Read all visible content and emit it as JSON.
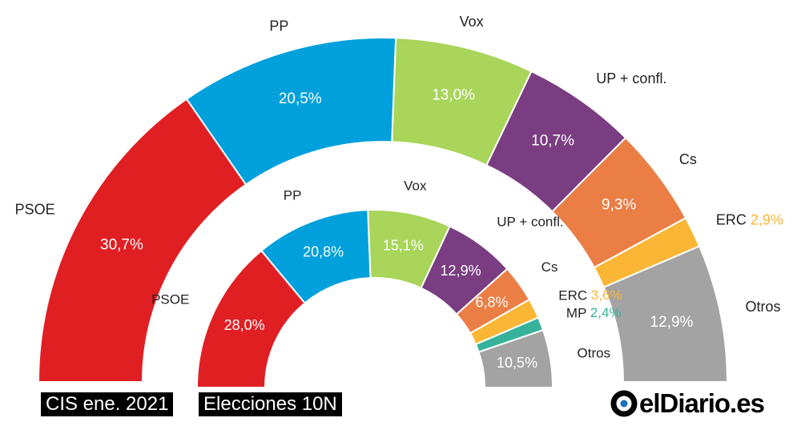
{
  "chart_data": [
    {
      "type": "pie",
      "variant": "semicircle-donut",
      "caption": "CIS ene. 2021",
      "categories": [
        "PSOE",
        "PP",
        "Vox",
        "UP + confl.",
        "Cs",
        "ERC",
        "Otros"
      ],
      "values": [
        30.7,
        20.5,
        13.0,
        10.7,
        9.3,
        2.9,
        12.9
      ],
      "value_labels": [
        "30,7%",
        "20,5%",
        "13,0%",
        "10,7%",
        "9,3%",
        "2,9%",
        "12,9%"
      ],
      "colors": [
        "#e01f23",
        "#00a0dc",
        "#a8d55a",
        "#7a3d82",
        "#ea7e45",
        "#fbb636",
        "#a3a3a3"
      ]
    },
    {
      "type": "pie",
      "variant": "semicircle-donut",
      "caption": "Elecciones 10N",
      "categories": [
        "PSOE",
        "PP",
        "Vox",
        "UP + confl.",
        "Cs",
        "ERC",
        "MP",
        "Otros"
      ],
      "values": [
        28.0,
        20.8,
        15.1,
        12.9,
        6.8,
        3.6,
        2.4,
        10.5
      ],
      "value_labels": [
        "28,0%",
        "20,8%",
        "15,1%",
        "12,9%",
        "6,8%",
        "3,6%",
        "2,4%",
        "10,5%"
      ],
      "colors": [
        "#e01f23",
        "#00a0dc",
        "#a8d55a",
        "#7a3d82",
        "#ea7e45",
        "#fbb636",
        "#36b29b",
        "#a3a3a3"
      ]
    }
  ],
  "legend": {
    "position": "outside-labels"
  },
  "logo": {
    "text": "elDiario.es"
  }
}
